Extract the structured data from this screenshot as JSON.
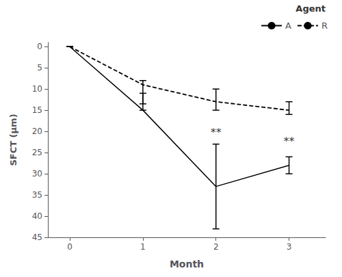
{
  "chart_data": {
    "type": "line",
    "x": [
      0,
      1,
      2,
      3
    ],
    "series": [
      {
        "name": "A",
        "color": "#000000",
        "line_style": "solid",
        "values": [
          0,
          15,
          33,
          28
        ],
        "yerr_low": [
          0,
          4,
          10,
          2
        ],
        "yerr_high": [
          0,
          0,
          10,
          2
        ]
      },
      {
        "name": "R",
        "color": "#000000",
        "line_style": "dashed",
        "values": [
          0,
          9,
          13,
          15
        ],
        "yerr_low": [
          0,
          1,
          3,
          2
        ],
        "yerr_high": [
          0,
          4.5,
          2,
          1
        ]
      }
    ],
    "xlabel": "Month",
    "ylabel": "SFCT (μm)",
    "xlim": [
      -0.3,
      3.5
    ],
    "xticks": [
      0,
      1,
      2,
      3
    ],
    "ylim": [
      45,
      -1
    ],
    "yticks": [
      0,
      5,
      10,
      15,
      20,
      25,
      30,
      35,
      40,
      45
    ],
    "annotations": [
      {
        "x": 2,
        "y": 19,
        "text": "**"
      },
      {
        "x": 3,
        "y": 21,
        "text": "**"
      }
    ],
    "legend": "upper right",
    "legend_title": "Agent",
    "grid": false
  }
}
